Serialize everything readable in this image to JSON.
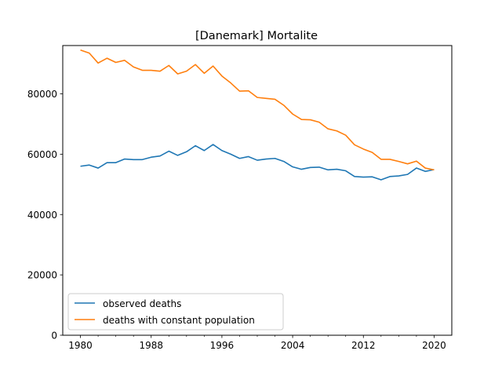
{
  "chart_data": {
    "type": "line",
    "title": "[Danemark] Mortalite",
    "xlabel": "",
    "ylabel": "",
    "xlim": [
      1978,
      2022
    ],
    "ylim": [
      0,
      96000
    ],
    "x_ticks": [
      1980,
      1988,
      1996,
      2004,
      2012,
      2020
    ],
    "x_tick_labels": [
      "1980",
      "1988",
      "1996",
      "2004",
      "2012",
      "2020"
    ],
    "y_ticks": [
      0,
      20000,
      40000,
      60000,
      80000
    ],
    "y_tick_labels": [
      "0",
      "20000",
      "40000",
      "60000",
      "80000"
    ],
    "grid": false,
    "legend_position": "lower-left",
    "x": [
      1980,
      1981,
      1982,
      1983,
      1984,
      1985,
      1986,
      1987,
      1988,
      1989,
      1990,
      1991,
      1992,
      1993,
      1994,
      1995,
      1996,
      1997,
      1998,
      1999,
      2000,
      2001,
      2002,
      2003,
      2004,
      2005,
      2006,
      2007,
      2008,
      2009,
      2010,
      2011,
      2012,
      2013,
      2014,
      2015,
      2016,
      2017,
      2018,
      2019,
      2020
    ],
    "series": [
      {
        "name": "observed deaths",
        "color": "#1f77b4",
        "values": [
          56000,
          56400,
          55400,
          57200,
          57200,
          58400,
          58200,
          58200,
          59000,
          59400,
          61000,
          59600,
          60800,
          62800,
          61200,
          63200,
          61200,
          60000,
          58600,
          59200,
          58000,
          58400,
          58600,
          57600,
          55800,
          55000,
          55600,
          55700,
          54800,
          55000,
          54500,
          52600,
          52400,
          52500,
          51500,
          52600,
          52800,
          53300,
          55400,
          54300,
          54900
        ]
      },
      {
        "name": "deaths with constant population",
        "color": "#ff7f0e",
        "values": [
          94500,
          93500,
          90200,
          91800,
          90400,
          91100,
          88900,
          87800,
          87800,
          87500,
          89400,
          86600,
          87500,
          89700,
          86800,
          89200,
          85900,
          83600,
          80900,
          81000,
          78800,
          78500,
          78200,
          76200,
          73300,
          71500,
          71400,
          70600,
          68400,
          67700,
          66300,
          63100,
          61700,
          60600,
          58300,
          58300,
          57600,
          56800,
          57700,
          55400,
          54800
        ]
      }
    ]
  }
}
